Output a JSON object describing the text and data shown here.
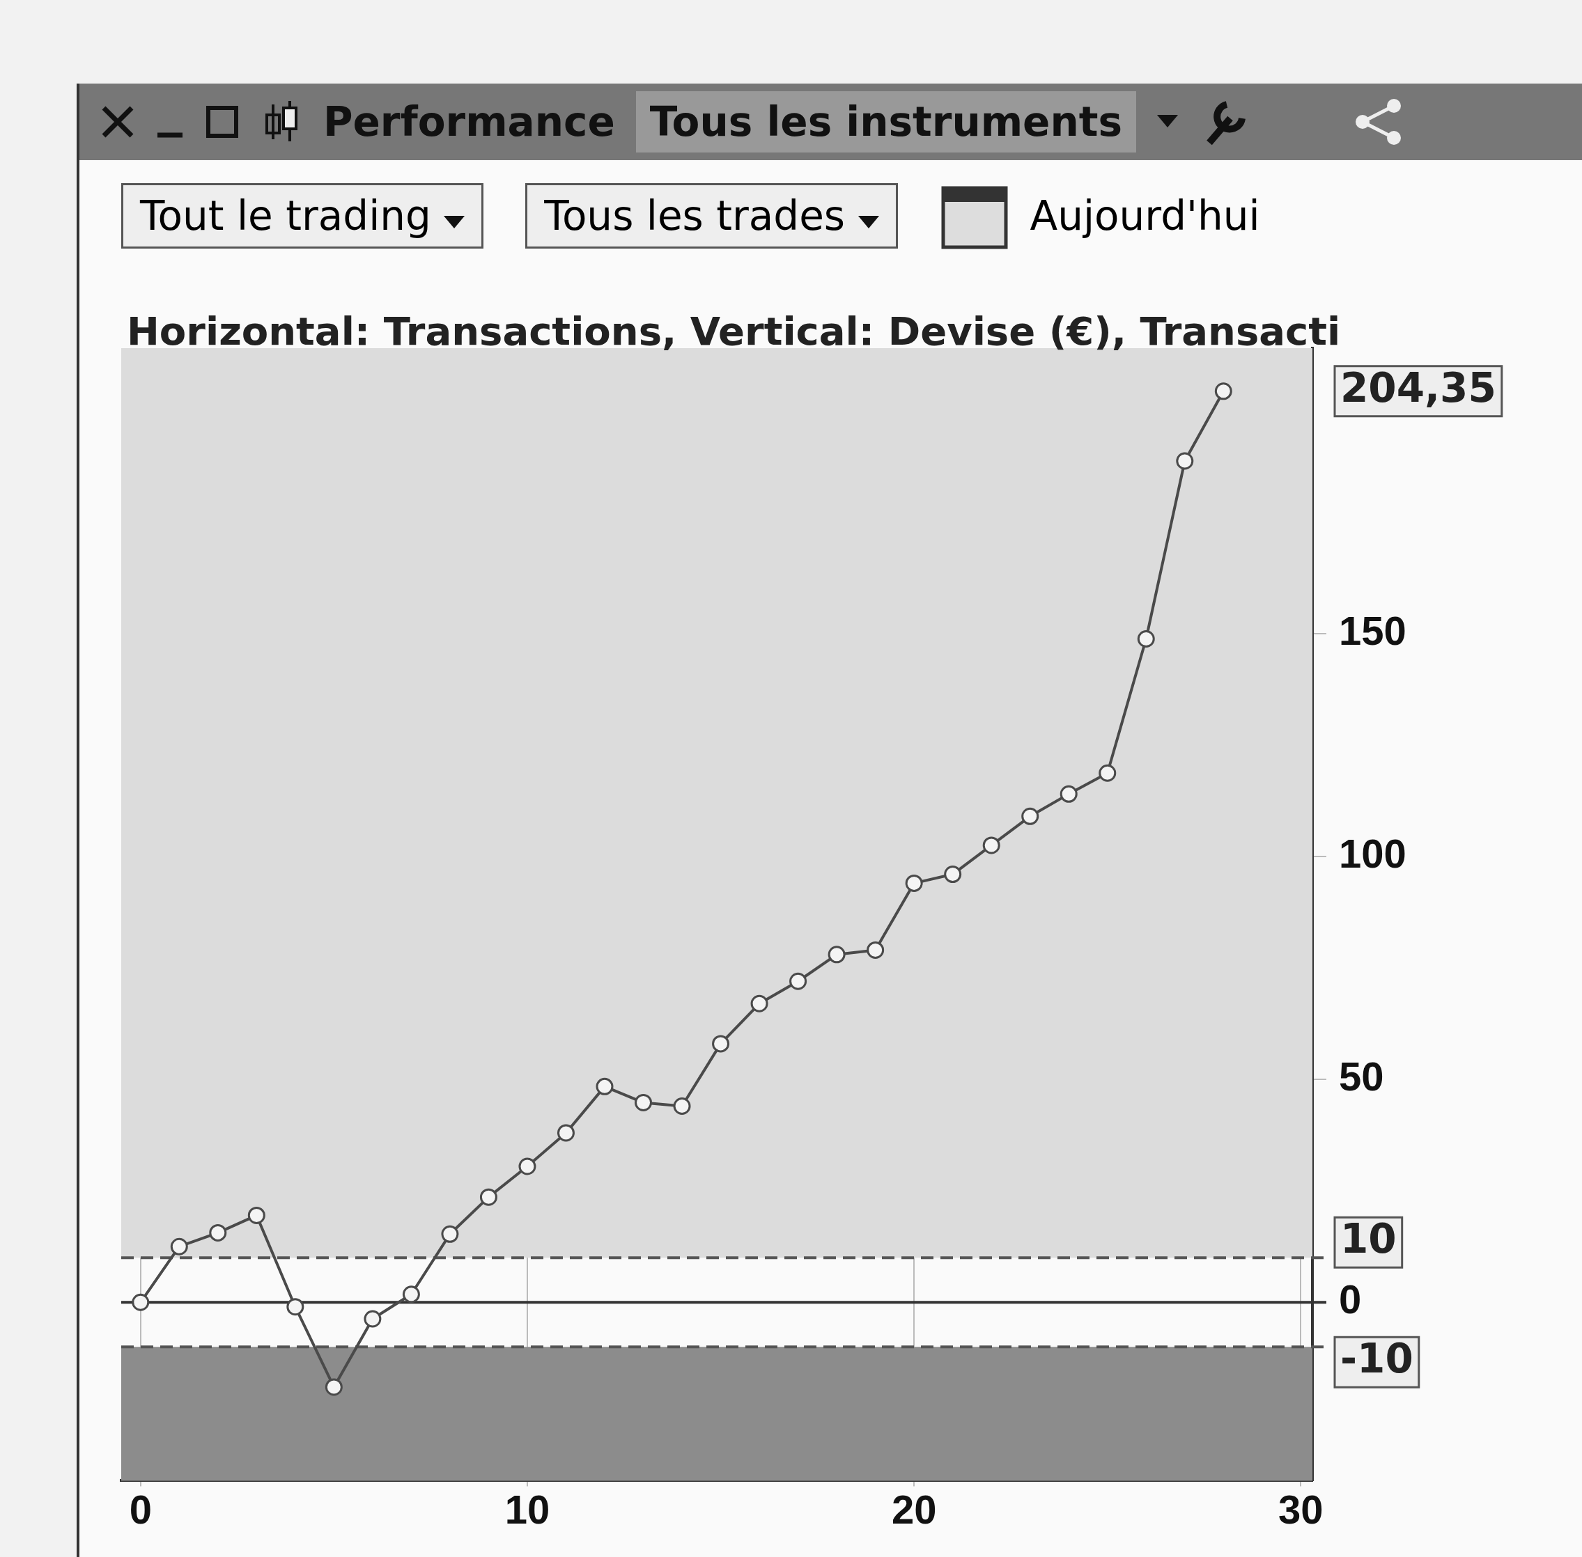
{
  "chart_data": {
    "type": "line",
    "title": "Horizontal: Transactions, Vertical: Devise (€), Transacti",
    "x": [
      0,
      1,
      2,
      3,
      4,
      5,
      6,
      7,
      8,
      9,
      10,
      11,
      12,
      13,
      14,
      15,
      16,
      17,
      18,
      19,
      20,
      21,
      22,
      23,
      24,
      25,
      26,
      27,
      28
    ],
    "series": [
      {
        "color": "#4a4a4a",
        "values": [
          0,
          12.5,
          15.6,
          19.5,
          -1,
          -19,
          -3.7,
          1.8,
          15.3,
          23.6,
          30.5,
          38,
          48.4,
          44.8,
          44,
          58,
          67,
          72,
          78,
          79,
          94,
          96,
          102.5,
          109,
          114,
          118.7,
          148.8,
          188.7,
          204.35
        ]
      }
    ],
    "xlim": [
      -0.5,
      30.3
    ],
    "xticks": [
      0,
      10,
      20,
      30
    ],
    "ylim": [
      -40,
      214
    ],
    "yticks": [
      0,
      50,
      100,
      150
    ],
    "grid": true,
    "marker": "circle",
    "line_style": "solid",
    "legend": false,
    "ref_lines": [
      {
        "axis": "y",
        "value": 10,
        "label": "10",
        "line_style": "dashed",
        "color": "#555555"
      },
      {
        "axis": "y",
        "value": -10,
        "label": "-10",
        "line_style": "dashed",
        "color": "#555555"
      },
      {
        "axis": "y",
        "value": 0,
        "line_style": "solid",
        "color": "#333333"
      }
    ],
    "bands": [
      {
        "axis": "y",
        "from": -40,
        "to": -10,
        "color": "#8c8c8c"
      },
      {
        "axis": "y",
        "from": 10,
        "to": 214,
        "color": "#dcdcdc"
      }
    ],
    "annotations": [
      "Performance",
      "Tous les instruments",
      "Tout le trading",
      "Tous les trades",
      "Aujourd'hui",
      {
        "text": "204,35",
        "x": 28,
        "y": 204.35
      }
    ]
  }
}
